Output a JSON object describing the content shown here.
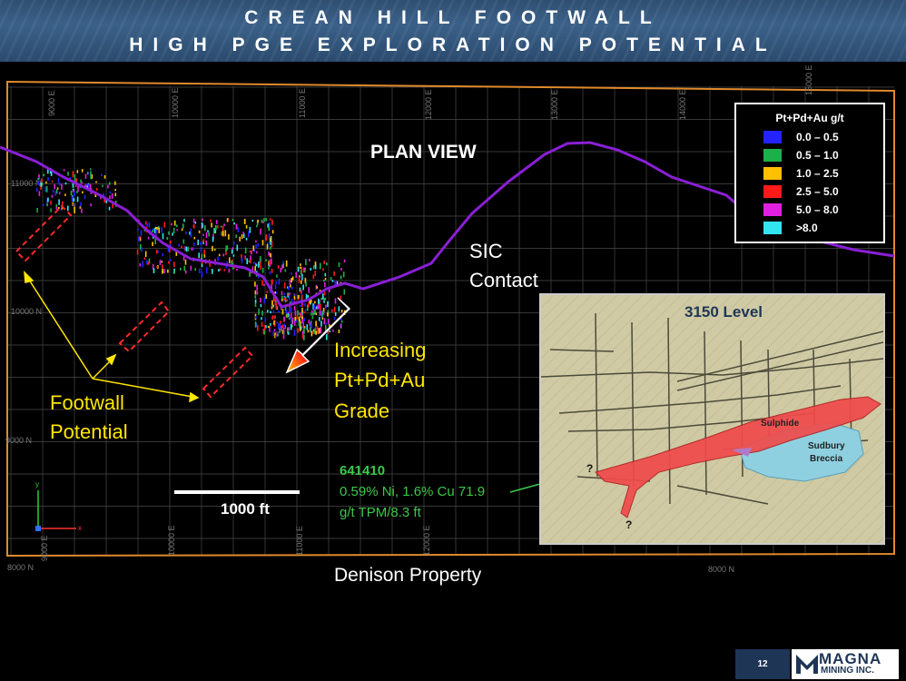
{
  "header": {
    "title_line1": "CREAN HILL FOOTWALL",
    "title_line2": "HIGH PGE EXPLORATION POTENTIAL"
  },
  "map": {
    "plan_view": "PLAN VIEW",
    "sic_contact_line1": "SIC",
    "sic_contact_line2": "Contact",
    "footwall_line1": "Footwall",
    "footwall_line2": "Potential",
    "grade_line1": "Increasing",
    "grade_line2": "Pt+Pd+Au",
    "grade_line3": "Grade",
    "scale_label": "1000 ft",
    "drill_id": "641410",
    "drill_line1": "0.59% Ni, 1.6% Cu 71.9",
    "drill_line2": "g/t TPM/8.3 ft",
    "property": "Denison Property",
    "grid_e": [
      "9000 E",
      "10000 E",
      "11000 E",
      "12000 E",
      "13000 E",
      "14000 E",
      "15000 E"
    ],
    "grid_n": [
      "11000 N",
      "10000 N",
      "9000 N",
      "8000 N"
    ]
  },
  "legend": {
    "title": "Pt+Pd+Au g/t",
    "items": [
      {
        "label": "0.0 – 0.5",
        "color": "#2323ff"
      },
      {
        "label": "0.5 – 1.0",
        "color": "#1db04a"
      },
      {
        "label": "1.0 – 2.5",
        "color": "#ffc000"
      },
      {
        "label": "2.5 – 5.0",
        "color": "#ff1a1a"
      },
      {
        "label": "5.0 – 8.0",
        "color": "#e020e0"
      },
      {
        "label": ">8.0",
        "color": "#33e5f0"
      }
    ]
  },
  "inset": {
    "title": "3150 Level",
    "sulphide": "Sulphide",
    "sudbury_line1": "Sudbury",
    "sudbury_line2": "Breccia",
    "q1": "?",
    "q2": "?"
  },
  "footer": {
    "page": "12",
    "logo_line1": "MAGNA",
    "logo_line2": "MINING INC."
  },
  "colors": {
    "sic_contact": "#8a1fd6",
    "boundary": "#e08a2c",
    "arrow": "#ffe600",
    "drill_text": "#3cc84a"
  }
}
